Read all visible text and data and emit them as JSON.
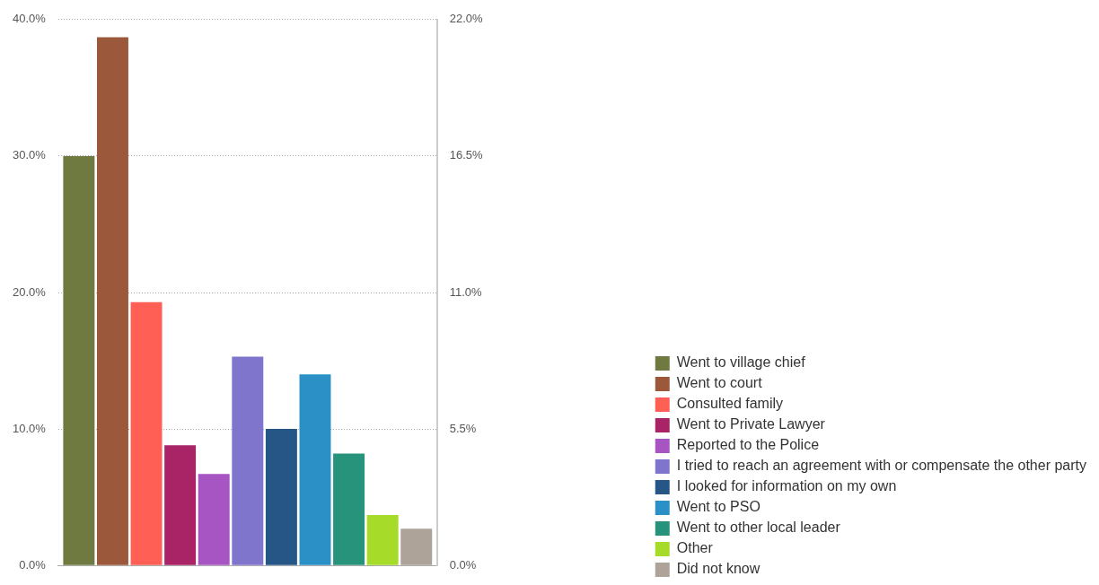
{
  "chart_data": {
    "type": "bar",
    "categories": [
      null
    ],
    "series": [
      {
        "name": "Went to village chief",
        "color": "#6f7a40",
        "values": [
          30.0
        ]
      },
      {
        "name": "Went to court",
        "color": "#9c583b",
        "values": [
          38.7
        ]
      },
      {
        "name": "Consulted family",
        "color": "#ff5f55",
        "values": [
          19.3
        ]
      },
      {
        "name": "Went to Private Lawyer",
        "color": "#a82466",
        "values": [
          8.8
        ]
      },
      {
        "name": "Reported to the Police",
        "color": "#a855c4",
        "values": [
          6.7
        ]
      },
      {
        "name": "I tried to reach an agreement with or compensate the other party",
        "color": "#7f75cc",
        "values": [
          15.3
        ]
      },
      {
        "name": "I looked for information on my own",
        "color": "#255686",
        "values": [
          10.0
        ]
      },
      {
        "name": "Went to PSO",
        "color": "#2a90c6",
        "values": [
          14.0
        ]
      },
      {
        "name": "Went to other local leader",
        "color": "#27937a",
        "values": [
          8.2
        ]
      },
      {
        "name": "Other",
        "color": "#a6db2a",
        "values": [
          3.7
        ]
      },
      {
        "name": "Did not know",
        "color": "#ada398",
        "values": [
          2.7
        ]
      }
    ],
    "ylim": [
      0,
      40
    ],
    "yticks": [
      {
        "value": 0,
        "label": "0.0%"
      },
      {
        "value": 10,
        "label": "10.0%"
      },
      {
        "value": 20,
        "label": "20.0%"
      },
      {
        "value": 30,
        "label": "30.0%"
      },
      {
        "value": 40,
        "label": "40.0%"
      }
    ],
    "y2lim": [
      0,
      22
    ],
    "y2ticks": [
      {
        "value": 0,
        "label": "0.0%"
      },
      {
        "value": 5.5,
        "label": "5.5%"
      },
      {
        "value": 11,
        "label": "11.0%"
      },
      {
        "value": 16.5,
        "label": "16.5%"
      },
      {
        "value": 22,
        "label": "22.0%"
      }
    ],
    "grid": "y",
    "legend": "bottom right"
  }
}
